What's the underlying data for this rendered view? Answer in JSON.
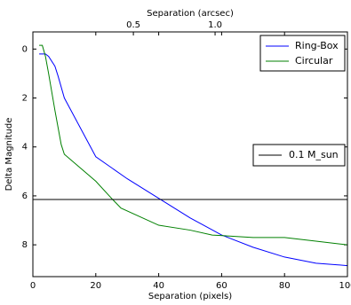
{
  "chart_data": {
    "type": "line",
    "xlabel": "Separation (pixels)",
    "ylabel": "Delta Magnitude",
    "x2label": "Separation (arcsec)",
    "xlim": [
      0,
      100
    ],
    "xticks": [
      0,
      20,
      40,
      60,
      80,
      100
    ],
    "ylim": [
      -0.7,
      9.3
    ],
    "y_inverted": true,
    "yticks": [
      0,
      2,
      4,
      6,
      8
    ],
    "x2lim": [
      -0.115,
      1.81
    ],
    "x2ticks": [
      0.5,
      {
        "value": 1.0,
        "label": "1.0"
      }
    ],
    "series": [
      {
        "name": "Ring-Box",
        "color": "#0000ff",
        "x": [
          2,
          3,
          4,
          5,
          7,
          8,
          10,
          20,
          30,
          40,
          50,
          60,
          70,
          80,
          90,
          100
        ],
        "values": [
          0.2,
          0.2,
          0.2,
          0.3,
          0.7,
          1.1,
          2.0,
          4.4,
          5.3,
          6.1,
          6.9,
          7.6,
          8.1,
          8.5,
          8.75,
          8.85
        ]
      },
      {
        "name": "Circular",
        "color": "#008000",
        "x": [
          2,
          3,
          4,
          5,
          7,
          9,
          10,
          20,
          25,
          28,
          40,
          50,
          57,
          70,
          80,
          90,
          100
        ],
        "values": [
          -0.15,
          -0.15,
          0.3,
          1.0,
          2.5,
          3.9,
          4.3,
          5.4,
          6.1,
          6.5,
          7.2,
          7.4,
          7.6,
          7.7,
          7.7,
          7.85,
          8.0
        ]
      }
    ],
    "reference_line": {
      "name": "0.1 M_sun",
      "value": 6.15,
      "color": "#000000"
    }
  }
}
